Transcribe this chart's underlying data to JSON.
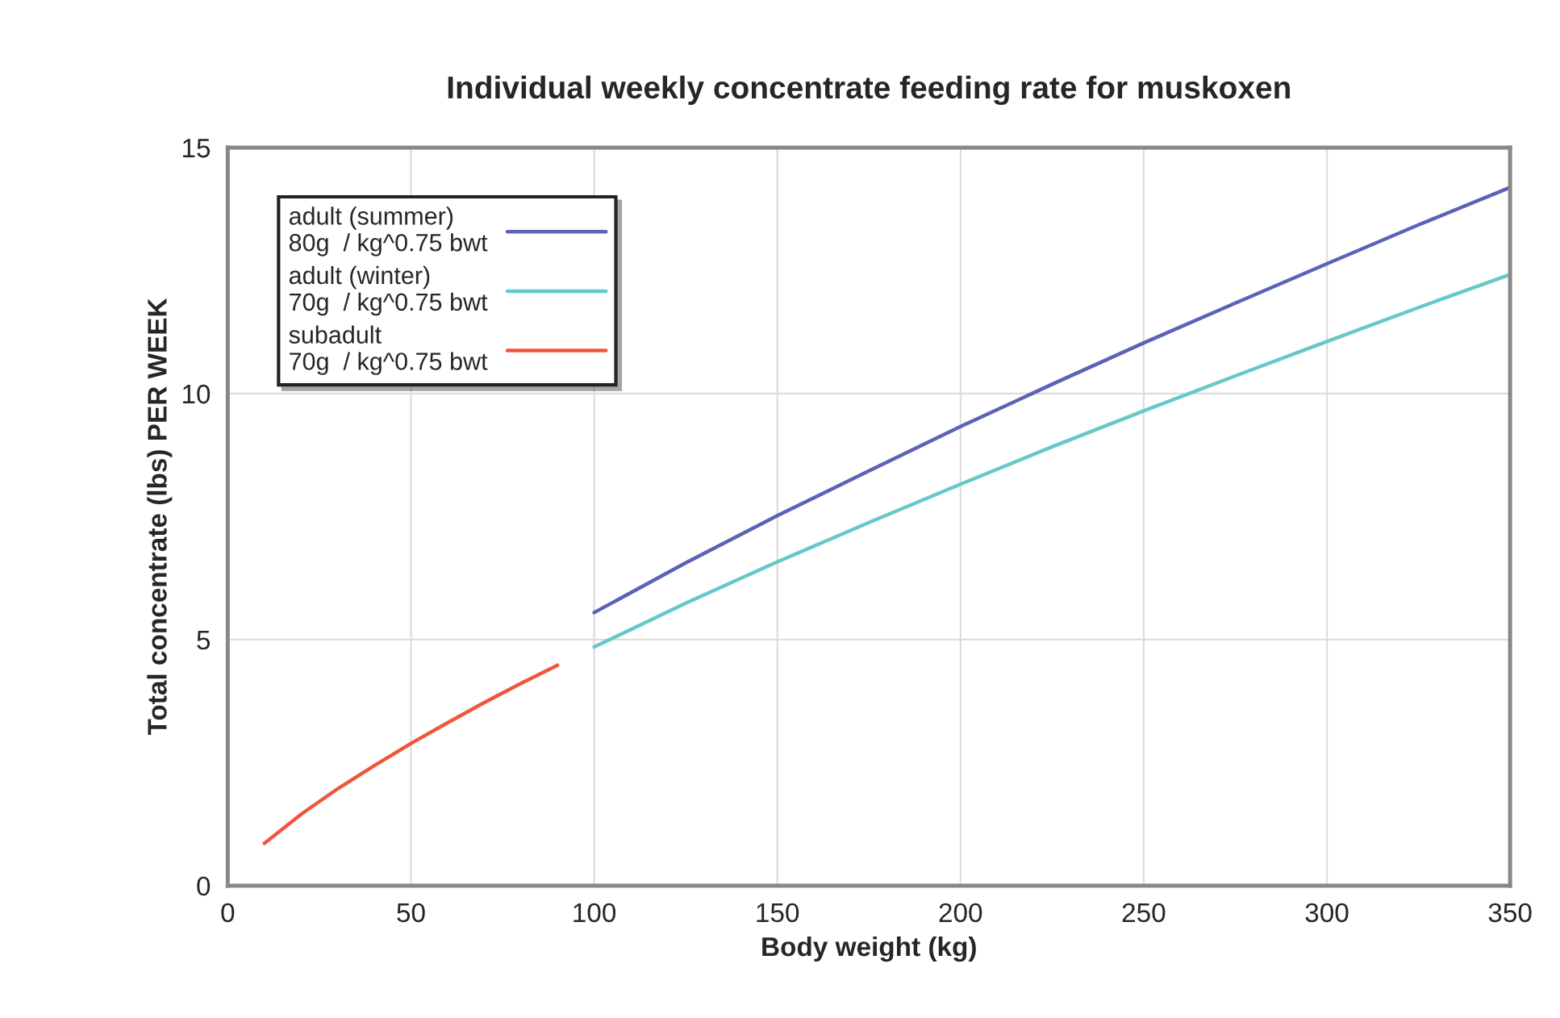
{
  "chart_data": {
    "type": "line",
    "title": "Individual weekly concentrate feeding rate for muskoxen",
    "xlabel": "Body weight (kg)",
    "ylabel": "Total concentrate (lbs) PER WEEK",
    "series": [
      {
        "name": "adult (summer)\n80g  / kg^0.75 bwt",
        "color": "#5b63b8",
        "x": [
          100,
          125,
          150,
          175,
          200,
          225,
          250,
          275,
          300,
          325,
          350
        ],
        "values": [
          5.55,
          6.56,
          7.52,
          8.43,
          9.33,
          10.19,
          11.03,
          11.84,
          12.64,
          13.43,
          14.19
        ]
      },
      {
        "name": "adult (winter)\n70g  / kg^0.75 bwt",
        "color": "#66c8c8",
        "x": [
          100,
          125,
          150,
          175,
          200,
          225,
          250,
          275,
          300,
          325,
          350
        ],
        "values": [
          4.85,
          5.74,
          6.58,
          7.38,
          8.16,
          8.92,
          9.65,
          10.36,
          11.06,
          11.75,
          12.42
        ]
      },
      {
        "name": "subadult\n70g  / kg^0.75 bwt",
        "color": "#f0563c",
        "x": [
          10,
          20,
          30,
          40,
          50,
          60,
          70,
          80,
          90
        ],
        "values": [
          0.86,
          1.45,
          1.97,
          2.44,
          2.89,
          3.31,
          3.72,
          4.11,
          4.48
        ]
      }
    ],
    "xlim": [
      0,
      350
    ],
    "xticks": [
      0,
      50,
      100,
      150,
      200,
      250,
      300,
      350
    ],
    "ylim": [
      0,
      15
    ],
    "yticks": [
      0,
      5,
      10,
      15
    ],
    "grid": true,
    "legend": "top left",
    "marker": "none",
    "line_style": "solid"
  }
}
